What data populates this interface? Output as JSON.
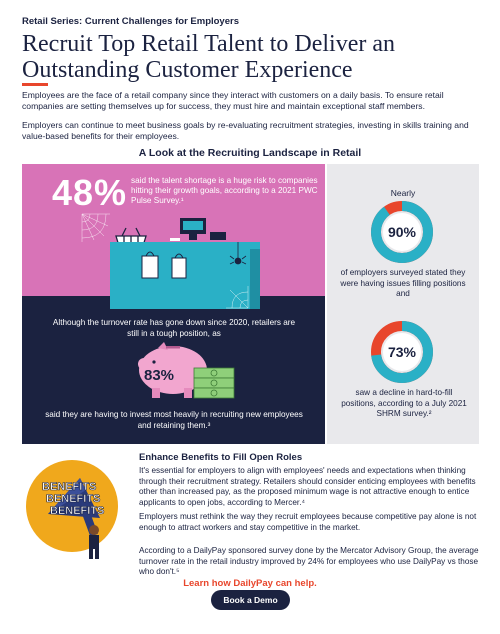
{
  "header": {
    "series": "Retail Series: Current Challenges for Employers",
    "title": "Recruit Top Retail Talent to Deliver an Outstanding Customer Experience",
    "intro_1": "Employees are the face of a retail company since they interact with customers on a daily basis. To ensure retail companies are setting themselves up for success, they must hire and maintain exceptional staff members.",
    "intro_2": "Employers can continue to meet business goals by re-evaluating recruitment strategies, investing in skills training and value-based benefits for their employees."
  },
  "landscape": {
    "title": "A Look at the Recruiting Landscape in Retail",
    "stat_48": {
      "value": "48%",
      "text": "said the talent shortage is a huge risk to companies hitting their growth goals, according to a 2021 PWC Pulse Survey.¹"
    },
    "turnover_text": "Although the turnover rate has gone down since 2020, retailers are still in a tough position, as",
    "stat_83": {
      "value": "83%",
      "text": "said they are having to invest most heavily in recruiting new employees and retaining them.³"
    },
    "stat_90": {
      "prefix": "Nearly",
      "value": "90%",
      "fraction": 0.9,
      "text": "of employers surveyed stated they were having issues filling positions and"
    },
    "stat_73": {
      "value": "73%",
      "fraction": 0.73,
      "text": "saw a decline in hard-to-fill positions, according to a July 2021 SHRM survey.²"
    }
  },
  "benefits": {
    "sign_words": [
      "BENEFITS",
      "BENEFITS",
      "BENEFITS"
    ],
    "title": "Enhance Benefits to Fill Open Roles",
    "para_1": "It's essential for employers to align with employees' needs and expectations when thinking through their recruitment strategy. Retailers should consider enticing employees with benefits other than increased pay, as the proposed minimum wage is not attractive enough to entice applicants to open jobs, according to Mercer.⁴",
    "para_2": "Employers must rethink the way they recruit employees because competitive pay alone is not enough to attract workers and stay competitive in the market.",
    "para_3": "According to a DailyPay sponsored survey done by the Mercator Advisory Group, the average turnover rate in the retail industry improved by 24% for employees who use DailyPay vs those who don't.⁵"
  },
  "cta": {
    "learn_link": "Learn how DailyPay can help.",
    "demo_button": "Book a Demo"
  },
  "colors": {
    "navy": "#1b2240",
    "pink": "#d873b7",
    "teal": "#2ab0c6",
    "red": "#e8462c",
    "grey": "#e9e9ec",
    "gold": "#f0a81c"
  },
  "icons": {
    "store_counter": "store-counter-illustration",
    "piggy_bank": "piggy-bank-illustration",
    "megaphone": "megaphone-illustration"
  }
}
